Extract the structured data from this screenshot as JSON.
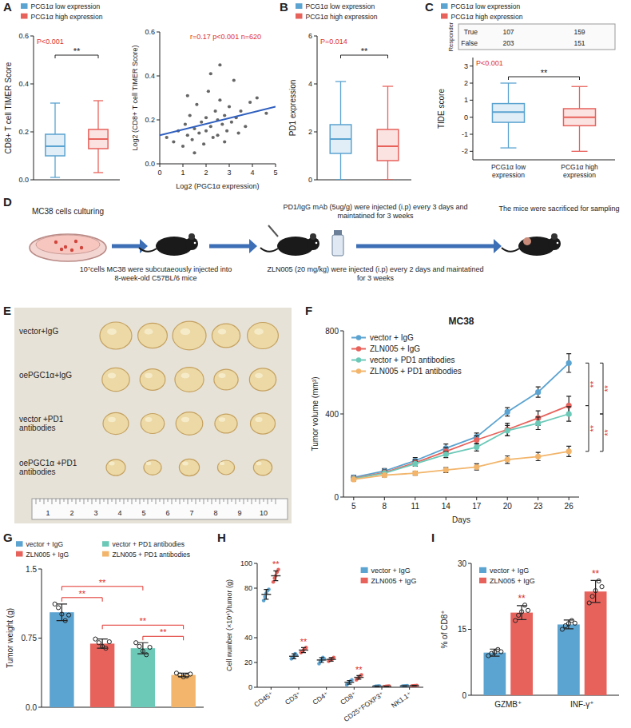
{
  "chart_data": [
    {
      "type": "box",
      "panel": "A",
      "ylabel": "CD8+ T cell TIMER Score",
      "ylim": [
        0,
        0.6
      ],
      "yticks": [
        {
          "value": 0,
          "label": "0.0"
        },
        0.2,
        0.4,
        0.6
      ],
      "legend": "top",
      "tick_labels": "y",
      "annotation": "P<0.001",
      "significance": "**",
      "boxes": [
        {
          "name": "PCG1α low expression",
          "color": "#5ba3d0",
          "min": 0.01,
          "q1": 0.1,
          "median": 0.14,
          "q3": 0.19,
          "max": 0.32
        },
        {
          "name": "PCG1α high expression",
          "color": "#e8625c",
          "min": 0.03,
          "q1": 0.13,
          "median": 0.17,
          "q3": 0.21,
          "max": 0.33
        }
      ]
    },
    {
      "type": "scatter",
      "xlabel": "Log2 (PGC1α expression)",
      "ylabel": "Log2 (CD8+ T cell TIMER Score)",
      "xlim": [
        0,
        5
      ],
      "xticks": [
        0,
        1,
        2,
        3,
        4,
        5
      ],
      "ylim": [
        0,
        0.6
      ],
      "yticks": [
        {
          "value": 0,
          "label": "0.0"
        },
        0.2,
        0.4,
        0.6
      ],
      "annotation": "r=0.17 p<0.001 n=620",
      "color": "#333333",
      "x": [
        0.3,
        0.6,
        0.8,
        1.0,
        1.1,
        1.2,
        1.3,
        1.4,
        1.5,
        1.6,
        1.7,
        1.8,
        1.9,
        2.0,
        2.0,
        2.1,
        2.2,
        2.3,
        2.4,
        2.5,
        2.5,
        2.6,
        2.7,
        2.8,
        2.9,
        3.0,
        3.1,
        3.2,
        3.3,
        3.5,
        3.7,
        3.9,
        4.2,
        4.6,
        1.5,
        2.2,
        2.8,
        1.2,
        3.4,
        2.6
      ],
      "y": [
        0.12,
        0.1,
        0.15,
        0.08,
        0.18,
        0.13,
        0.22,
        0.11,
        0.16,
        0.27,
        0.14,
        0.19,
        0.09,
        0.21,
        0.15,
        0.33,
        0.17,
        0.12,
        0.24,
        0.2,
        0.13,
        0.29,
        0.18,
        0.22,
        0.15,
        0.26,
        0.19,
        0.38,
        0.21,
        0.24,
        0.17,
        0.28,
        0.3,
        0.23,
        0.05,
        0.41,
        0.1,
        0.31,
        0.14,
        0.45
      ],
      "fit": {
        "x": [
          0,
          5
        ],
        "y": [
          0.13,
          0.26
        ]
      }
    },
    {
      "type": "box",
      "panel": "B",
      "ylabel": "PD1 expression",
      "ylim": [
        0,
        6
      ],
      "yticks": [
        0,
        2,
        4,
        6
      ],
      "legend": "top",
      "tick_labels": "y",
      "annotation": "P=0.014",
      "significance": "**",
      "boxes": [
        {
          "name": "PCG1α low expression",
          "color": "#5ba3d0",
          "min": 0,
          "q1": 1.1,
          "median": 1.7,
          "q3": 2.3,
          "max": 4.1
        },
        {
          "name": "PCG1α high expression",
          "color": "#e8625c",
          "min": 0,
          "q1": 0.8,
          "median": 1.4,
          "q3": 2.1,
          "max": 3.9
        }
      ]
    },
    {
      "type": "box",
      "panel": "C",
      "ylabel": "TIDE score",
      "ylim": [
        -2.5,
        3.5
      ],
      "yticks": [
        -2,
        -1,
        0,
        1,
        2,
        3
      ],
      "legend": "top",
      "annotation": "P<0.001",
      "significance": "**",
      "table": {
        "title": "Responder",
        "rows": [
          {
            "label": "True",
            "values": [
              107,
              159
            ]
          },
          {
            "label": "False",
            "values": [
              203,
              151
            ]
          }
        ]
      },
      "boxes": [
        {
          "name": "PCG1α low expression",
          "color": "#5ba3d0",
          "min": -1.8,
          "q1": -0.3,
          "median": 0.3,
          "q3": 0.8,
          "max": 2.0
        },
        {
          "name": "PCG1α high expression",
          "color": "#e8625c",
          "min": -2.0,
          "q1": -0.5,
          "median": 0.0,
          "q3": 0.5,
          "max": 1.8
        }
      ]
    },
    {
      "type": "line",
      "panel": "F",
      "title": "MC38",
      "xlabel": "Days",
      "ylabel": "Tumor volume (mm³)",
      "x": [
        5,
        8,
        11,
        14,
        17,
        20,
        23,
        26
      ],
      "xlim": [
        4,
        27
      ],
      "xticks": [
        5,
        8,
        11,
        14,
        17,
        20,
        23,
        26
      ],
      "ylim": [
        0,
        800
      ],
      "yticks": [
        0,
        400,
        800
      ],
      "legend": "top-left",
      "marker": "circle",
      "series": [
        {
          "name": "vector + IgG",
          "color": "#5ba3d0",
          "values": [
            95,
            125,
            175,
            235,
            290,
            410,
            505,
            645
          ],
          "errors": [
            10,
            12,
            15,
            20,
            18,
            20,
            25,
            45
          ]
        },
        {
          "name": "ZLN005 + IgG",
          "color": "#e8625c",
          "values": [
            90,
            118,
            165,
            220,
            275,
            325,
            380,
            440
          ],
          "errors": [
            10,
            12,
            14,
            18,
            20,
            30,
            35,
            45
          ]
        },
        {
          "name": "vector + PD1 antibodies",
          "color": "#6cc9b8",
          "values": [
            88,
            115,
            160,
            205,
            240,
            320,
            355,
            400
          ],
          "errors": [
            8,
            10,
            12,
            15,
            18,
            25,
            30,
            35
          ]
        },
        {
          "name": "ZLN005 + PD1 antibodies",
          "color": "#f2b56b",
          "values": [
            85,
            105,
            115,
            130,
            145,
            180,
            195,
            220
          ],
          "errors": [
            8,
            8,
            10,
            12,
            15,
            18,
            20,
            25
          ]
        }
      ],
      "annotations": [
        {
          "text": "**",
          "between": [
            0,
            1
          ]
        },
        {
          "text": "**",
          "between": [
            0,
            2
          ]
        },
        {
          "text": "**",
          "between": [
            1,
            3
          ]
        },
        {
          "text": "**",
          "between": [
            2,
            3
          ]
        }
      ]
    },
    {
      "type": "bar",
      "panel": "G",
      "ylabel": "Tumor weight (g)",
      "categories": [
        "vector + IgG",
        "ZLN005 + IgG",
        "vector + PD1 antibodies",
        "ZLN005 + PD1 antibodies"
      ],
      "colors": [
        "#5ba3d0",
        "#e8625c",
        "#6cc9b8",
        "#f2b56b"
      ],
      "values": [
        1.03,
        0.69,
        0.64,
        0.35
      ],
      "errors": [
        0.09,
        0.05,
        0.06,
        0.02
      ],
      "points": [
        [
          1.12,
          1.08,
          1.01,
          0.94,
          1.0
        ],
        [
          0.74,
          0.7,
          0.66,
          0.64,
          0.71
        ],
        [
          0.7,
          0.66,
          0.61,
          0.57,
          0.65
        ],
        [
          0.37,
          0.35,
          0.33,
          0.34,
          0.36
        ]
      ],
      "ylim": [
        0,
        1.5
      ],
      "yticks": [
        {
          "value": 0,
          "label": "0.0"
        },
        0.75,
        1.5
      ],
      "legend": "top",
      "tick_labels": "y",
      "annotations": [
        {
          "text": "**",
          "between": [
            0,
            1
          ]
        },
        {
          "text": "**",
          "between": [
            0,
            2
          ]
        },
        {
          "text": "**",
          "between": [
            2,
            3
          ]
        },
        {
          "text": "**",
          "between": [
            1,
            3
          ]
        }
      ]
    },
    {
      "type": "dot",
      "panel": "H",
      "ylabel": "Cell number (×10⁴)/tumor (g)",
      "categories": [
        "CD45⁺",
        "CD3⁺",
        "CD4⁺",
        "CD8⁺",
        "CD25⁺FOXP3⁺",
        "NK1.1⁺"
      ],
      "ylim": [
        0,
        100
      ],
      "yticks": [
        0,
        20,
        40,
        80,
        100
      ],
      "legend": "top-right",
      "series": [
        {
          "name": "vector + IgG",
          "color": "#5ba3d0",
          "values": [
            75,
            25,
            22,
            4,
            0.8,
            1.0
          ],
          "errors": [
            4,
            2,
            2,
            1.5,
            0.3,
            0.3
          ],
          "points": [
            [
              70,
              73,
              76,
              78,
              79
            ],
            [
              23,
              24,
              25,
              27,
              26
            ],
            [
              19,
              21,
              22,
              24,
              23
            ],
            [
              2,
              3,
              4,
              5,
              6
            ],
            [
              0.5,
              0.7,
              0.8,
              0.9,
              1.0
            ],
            [
              0.7,
              0.9,
              1.0,
              1.1,
              1.3
            ]
          ]
        },
        {
          "name": "ZLN005 + IgG",
          "color": "#e8625c",
          "values": [
            90,
            30,
            22.5,
            8,
            0.7,
            1.2
          ],
          "errors": [
            4,
            2,
            1.5,
            1.5,
            0.2,
            0.3
          ],
          "points": [
            [
              85,
              88,
              90,
              93,
              95
            ],
            [
              28,
              29,
              30,
              31,
              32
            ],
            [
              21,
              22,
              22,
              23,
              24
            ],
            [
              6,
              7,
              8,
              9,
              10
            ],
            [
              0.5,
              0.6,
              0.7,
              0.8,
              0.9
            ],
            [
              0.9,
              1.1,
              1.2,
              1.3,
              1.5
            ]
          ]
        }
      ],
      "annotations": [
        {
          "text": "**",
          "category": 0
        },
        {
          "text": "**",
          "category": 1
        },
        {
          "text": "**",
          "category": 3
        }
      ]
    },
    {
      "type": "bar",
      "panel": "I",
      "ylabel": "% of CD8⁺",
      "categories": [
        "GZMB⁺",
        "INF-γ⁺"
      ],
      "ylim": [
        0,
        30
      ],
      "yticks": [
        0,
        15,
        30
      ],
      "legend": "top-left",
      "series": [
        {
          "name": "vector + IgG",
          "color": "#5ba3d0",
          "values": [
            9.7,
            16.1
          ],
          "errors": [
            0.8,
            1.0
          ],
          "points": [
            [
              9.0,
              9.5,
              9.8,
              10.4,
              9.9
            ],
            [
              15.0,
              15.8,
              16.3,
              17.0,
              16.4
            ]
          ]
        },
        {
          "name": "ZLN005 + IgG",
          "color": "#e8625c",
          "values": [
            18.8,
            23.6
          ],
          "errors": [
            1.6,
            2.5
          ],
          "points": [
            [
              17.0,
              18.2,
              19.0,
              20.5,
              19.3
            ],
            [
              21.0,
              22.5,
              23.8,
              26.0,
              24.7
            ]
          ]
        }
      ],
      "annotations": [
        {
          "text": "**",
          "category": 0
        },
        {
          "text": "**",
          "category": 1
        }
      ]
    }
  ],
  "diagram": {
    "panel": "D",
    "dish_label": "MC38 cells culturing",
    "injection": "10⁷cells MC38 were subcutaeously injected into 8-week-old C57BL/6 mice",
    "antibody": "PD1/IgG mAb (5ug/g) were injected (i.p) every 3 days and maintatined for 3 weeks",
    "drug": "ZLN005 (20 mg/kg) were injected (i.p) every 2 days and maintatined for 3 weeks",
    "end": "The mice were sacrificed for sampling"
  },
  "photo": {
    "panel": "E",
    "rows": [
      "vector+IgG",
      "oePGC1α+IgG",
      "vector +PD1 antibodies",
      "oePGC1α +PD1 antibodies"
    ],
    "ruler": [
      1,
      2,
      3,
      4,
      5,
      6,
      7,
      8,
      9,
      10
    ]
  }
}
